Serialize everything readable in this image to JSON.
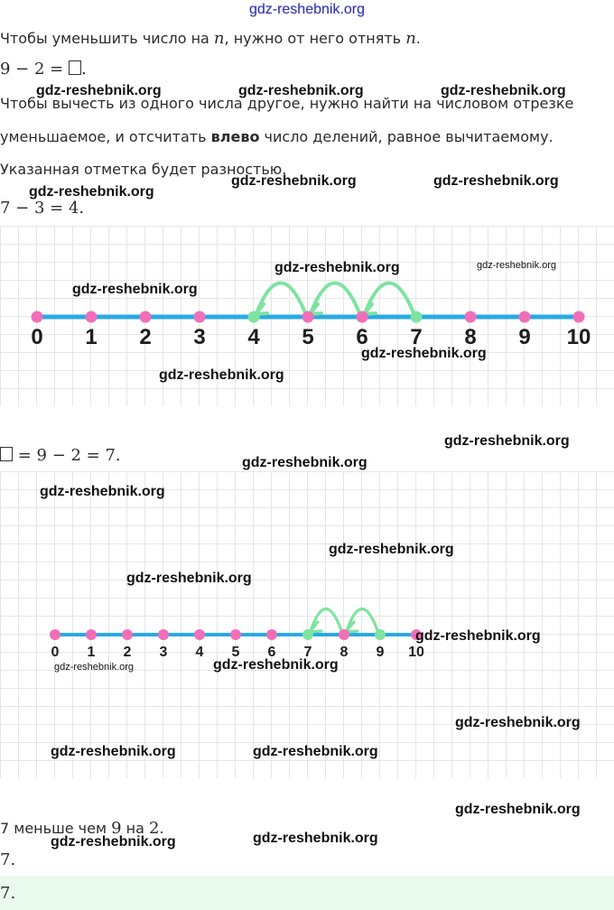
{
  "header": {
    "site": "gdz-reshebnik.org"
  },
  "text": {
    "rule1_a": "Чтобы уменьшить число на ",
    "rule1_n1": "n",
    "rule1_b": ", нужно от него отнять ",
    "rule1_n2": "n",
    "rule1_c": ".",
    "expr1_a": "9 − 2 = ",
    "expr1_b": ".",
    "rule2_line1": "Чтобы вычесть из одного числа другое, нужно найти на числовом отрезке",
    "rule2_line2_a": "уменьшаемое, и отсчитать ",
    "rule2_line2_bold": "влево",
    "rule2_line2_b": " число делений, равное вычитаемому.",
    "rule2_line3": "Указанная отметка будет разностью.",
    "expr2": "7 − 3 = 4.",
    "expr3_b": " = 9 − 2 = 7.",
    "conclusion_a": "7 меньше чем ",
    "conclusion_n": "9",
    "conclusion_b": " на ",
    "conclusion_m": "2",
    "conclusion_c": ".",
    "short": "7.",
    "final": "7."
  },
  "numberline1": {
    "labels": [
      "0",
      "1",
      "2",
      "3",
      "4",
      "5",
      "6",
      "7",
      "8",
      "9",
      "10"
    ],
    "start": 7,
    "jumps": 3,
    "result": 4,
    "line_color": "#29a9e6",
    "dot_color": "#f06fb8",
    "arc_color": "#7ee3a0"
  },
  "numberline2": {
    "labels": [
      "0",
      "1",
      "2",
      "3",
      "4",
      "5",
      "6",
      "7",
      "8",
      "9",
      "10"
    ],
    "start": 9,
    "jumps": 2,
    "result": 7,
    "line_color": "#29a9e6",
    "dot_color": "#f06fb8",
    "arc_color": "#7ee3a0"
  },
  "watermarks": {
    "w1": "gdz-reshebnik.org",
    "w2": "gdz-reshebnik.org",
    "w3": "gdz-reshebnik.org",
    "w4": "gdz-reshebnik.org",
    "w5": "gdz-reshebnik.org",
    "w6": "gdz-reshebnik.org",
    "w7": "gdz-reshebnik.org",
    "w8": "gdz-reshebnik.org",
    "w9": "gdz-reshebnik.org",
    "w10": "gdz-reshebnik.org",
    "w11": "gdz-reshebnik.org",
    "w12": "gdz-reshebnik.org",
    "w13": "gdz-reshebnik.org",
    "w14": "gdz-reshebnik.org",
    "w15": "gdz-reshebnik.org",
    "w16": "gdz-reshebnik.org",
    "w17": "gdz-reshebnik.org",
    "w18": "gdz-reshebnik.org",
    "w19": "gdz-reshebnik.org",
    "w20": "gdz-reshebnik.org",
    "w21": "gdz-reshebnik.org",
    "w22": "gdz-reshebnik.org",
    "w23": "gdz-reshebnik.org",
    "w24": "gdz-reshebnik.org"
  }
}
